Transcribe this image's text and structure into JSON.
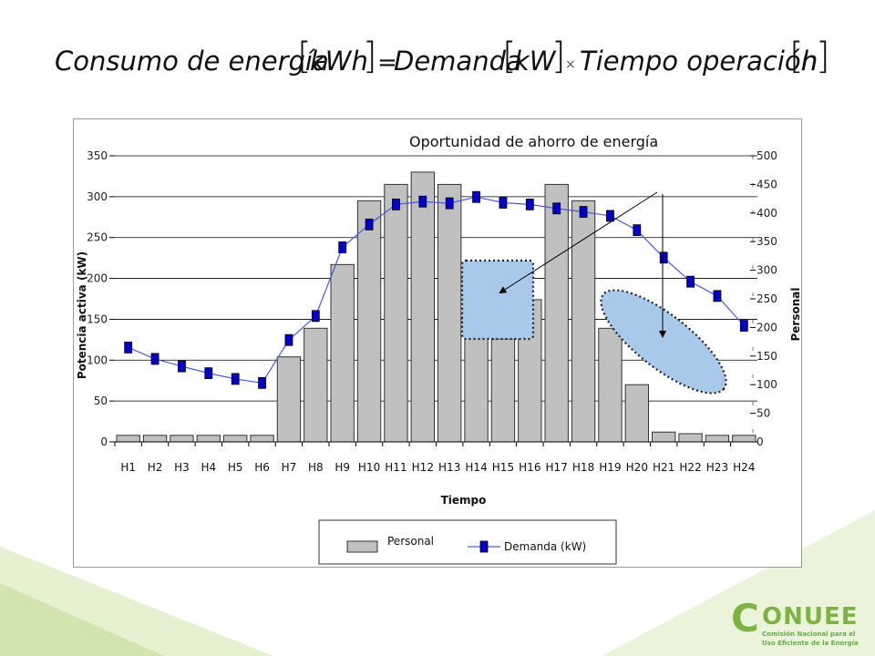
{
  "formula": {
    "lhs": "Consumo de energía",
    "lhs_unit": "kWh",
    "equals": "=",
    "term1": "Demanda",
    "term1_unit": "kW",
    "times": "×",
    "term2": "Tiempo operación",
    "term2_unit": "h"
  },
  "chart_data": {
    "type": "bar",
    "title": "Oportunidad de ahorro de energía",
    "xlabel": "Tiempo",
    "ylabel": "Potencia activa (kW)",
    "ylabel_right": "Personal",
    "categories": [
      "H1",
      "H2",
      "H3",
      "H4",
      "H5",
      "H6",
      "H7",
      "H8",
      "H9",
      "H10",
      "H11",
      "H12",
      "H13",
      "H14",
      "H15",
      "H16",
      "H17",
      "H18",
      "H19",
      "H20",
      "H21",
      "H22",
      "H23",
      "H24"
    ],
    "ylim": [
      0,
      350
    ],
    "yticks": [
      "0",
      "50",
      "100",
      "150",
      "200",
      "250",
      "300",
      "350"
    ],
    "ylim_right": [
      0,
      500
    ],
    "yticks_right": [
      "0",
      "50",
      "100",
      "150",
      "200",
      "250",
      "300",
      "350",
      "400",
      "450",
      "500"
    ],
    "grid": true,
    "legend_position": "bottom",
    "series": [
      {
        "name": "Personal",
        "kind": "bar",
        "axis": "left",
        "color": "#c0c0c0",
        "values": [
          8,
          8,
          8,
          8,
          8,
          8,
          104,
          139,
          217,
          295,
          315,
          330,
          315,
          139,
          126,
          174,
          315,
          295,
          139,
          70,
          12,
          10,
          8,
          8
        ]
      },
      {
        "name": "Demanda (kW)",
        "kind": "line",
        "axis": "right",
        "color": "#0000cc",
        "line_color": "#4a5adb",
        "values": [
          165,
          145,
          132,
          120,
          110,
          103,
          178,
          220,
          340,
          380,
          415,
          420,
          417,
          428,
          418,
          415,
          408,
          402,
          395,
          370,
          322,
          280,
          255,
          203
        ]
      }
    ],
    "annotation_colors": {
      "fill": "#a9c9ea",
      "border": "#222222"
    }
  },
  "logo": {
    "name": "CONUEE",
    "subtitle": [
      "Comisión Nacional para el",
      "Uso Eficiente de la Energía"
    ],
    "color": "#6aa84f"
  }
}
